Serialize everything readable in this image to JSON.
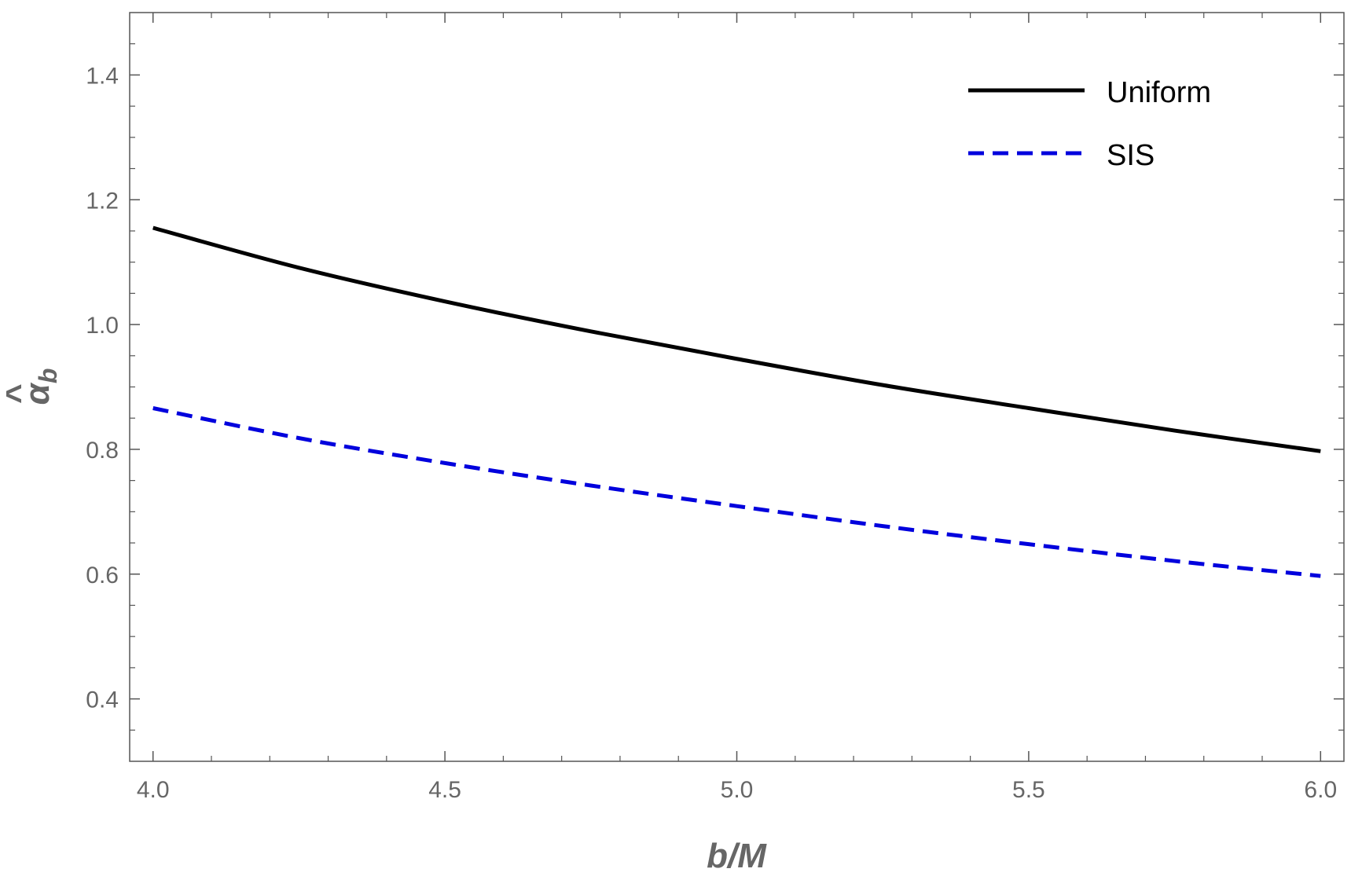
{
  "chart_data": {
    "type": "line",
    "title": "",
    "xlabel": "b/M",
    "ylabel": "α̂_b",
    "ylabel_parts": {
      "symbol": "α",
      "accent": "^",
      "subscript": "b"
    },
    "xlim": [
      3.96,
      6.04
    ],
    "ylim": [
      0.3,
      1.5
    ],
    "x_ticks": [
      4.0,
      4.5,
      5.0,
      5.5,
      6.0
    ],
    "x_tick_labels": [
      "4.0",
      "4.5",
      "5.0",
      "5.5",
      "6.0"
    ],
    "x_minor_step": 0.1,
    "y_ticks": [
      0.4,
      0.6,
      0.8,
      1.0,
      1.2,
      1.4
    ],
    "y_tick_labels": [
      "0.4",
      "0.6",
      "0.8",
      "1.0",
      "1.2",
      "1.4"
    ],
    "y_minor_step": 0.05,
    "grid": false,
    "legend_position": "top-right",
    "x": [
      4.0,
      4.25,
      4.5,
      4.75,
      5.0,
      5.25,
      5.5,
      5.75,
      6.0
    ],
    "series": [
      {
        "name": "Uniform",
        "style": "solid",
        "color": "#000000",
        "values": [
          1.155,
          1.091,
          1.037,
          0.989,
          0.945,
          0.903,
          0.866,
          0.83,
          0.797
        ]
      },
      {
        "name": "SIS",
        "style": "dashed",
        "color": "#0000dd",
        "values": [
          0.866,
          0.818,
          0.778,
          0.742,
          0.709,
          0.677,
          0.648,
          0.621,
          0.597
        ]
      }
    ]
  },
  "colors": {
    "frame": "#555555",
    "tick_text": "#666666"
  }
}
